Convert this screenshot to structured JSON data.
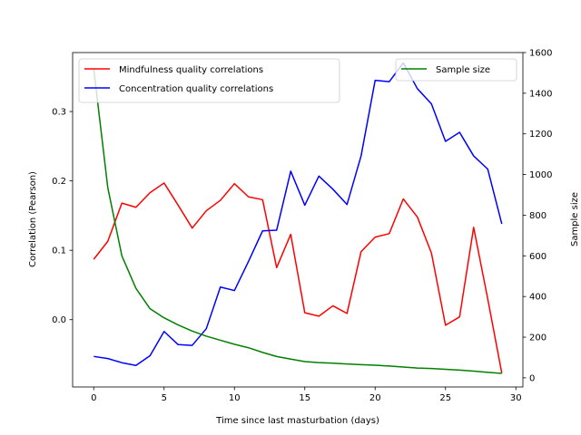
{
  "chart_data": {
    "type": "line",
    "xlabel": "Time since last masturbation (days)",
    "ylabel_left": "Correlation (Pearson)",
    "ylabel_right": "Sample size",
    "xlim": [
      -1.5,
      30.5
    ],
    "ylim_left": [
      -0.097,
      0.385
    ],
    "ylim_right": [
      -45,
      1600
    ],
    "x_ticks": [
      0,
      5,
      10,
      15,
      20,
      25,
      30
    ],
    "x_tick_labels": [
      "0",
      "5",
      "10",
      "15",
      "20",
      "25",
      "30"
    ],
    "y_left_ticks": [
      0.0,
      0.1,
      0.2,
      0.3
    ],
    "y_left_tick_labels": [
      "0.0",
      "0.1",
      "0.2",
      "0.3"
    ],
    "y_right_ticks": [
      0,
      200,
      400,
      600,
      800,
      1000,
      1200,
      1400,
      1600
    ],
    "y_right_tick_labels": [
      "0",
      "200",
      "400",
      "600",
      "800",
      "1000",
      "1200",
      "1400",
      "1600"
    ],
    "x": [
      0,
      1,
      2,
      3,
      4,
      5,
      6,
      7,
      8,
      9,
      10,
      11,
      12,
      13,
      14,
      15,
      16,
      17,
      18,
      19,
      20,
      21,
      22,
      23,
      24,
      25,
      26,
      27,
      28,
      29
    ],
    "series": [
      {
        "name": "Mindfulness quality correlations",
        "axis": "left",
        "color": "#ff0000",
        "values": [
          0.087,
          0.113,
          0.168,
          0.162,
          0.183,
          0.197,
          0.165,
          0.132,
          0.157,
          0.172,
          0.196,
          0.177,
          0.173,
          0.075,
          0.123,
          0.01,
          0.005,
          0.02,
          0.009,
          0.098,
          0.119,
          0.124,
          0.174,
          0.148,
          0.096,
          -0.008,
          0.004,
          0.133,
          0.03,
          -0.077
        ]
      },
      {
        "name": "Concentration quality correlations",
        "axis": "left",
        "color": "#0000ff",
        "values": [
          -0.053,
          -0.056,
          -0.062,
          -0.066,
          -0.052,
          -0.017,
          -0.036,
          -0.037,
          -0.013,
          0.047,
          0.042,
          0.084,
          0.128,
          0.129,
          0.214,
          0.165,
          0.207,
          0.188,
          0.166,
          0.236,
          0.345,
          0.343,
          0.37,
          0.333,
          0.311,
          0.257,
          0.27,
          0.236,
          0.217,
          0.138
        ]
      },
      {
        "name": "Sample size",
        "axis": "right",
        "color": "#008000",
        "values": [
          1520,
          935,
          600,
          440,
          340,
          295,
          260,
          230,
          205,
          185,
          165,
          148,
          125,
          105,
          92,
          80,
          75,
          72,
          68,
          65,
          62,
          58,
          53,
          48,
          46,
          42,
          38,
          33,
          27,
          22
        ]
      }
    ],
    "legend_left": {
      "placement": "upper-left",
      "entries": [
        "Mindfulness quality correlations",
        "Concentration quality correlations"
      ]
    },
    "legend_right": {
      "placement": "upper-right",
      "entries": [
        "Sample size"
      ]
    },
    "grid": false
  }
}
